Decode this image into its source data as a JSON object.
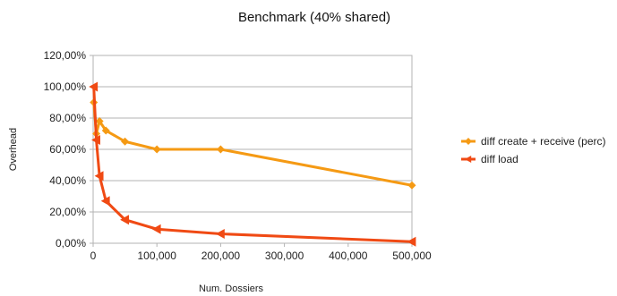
{
  "chart_data": {
    "type": "line",
    "title": "Benchmark (40% shared)",
    "xlabel": "Num. Dossiers",
    "ylabel": "Overhead",
    "xlim": [
      0,
      500000
    ],
    "ylim": [
      0,
      1.2
    ],
    "x_ticks": [
      0,
      100000,
      200000,
      300000,
      400000,
      500000
    ],
    "x_tick_labels": [
      "0",
      "100,000",
      "200,000",
      "300,000",
      "400,000",
      "500,000"
    ],
    "y_ticks": [
      0,
      0.2,
      0.4,
      0.6,
      0.8,
      1.0,
      1.2
    ],
    "y_tick_labels": [
      "0,00%",
      "20,00%",
      "40,00%",
      "60,00%",
      "80,00%",
      "100,00%",
      "120,00%"
    ],
    "grid": "horizontal",
    "legend_position": "right",
    "series": [
      {
        "name": "diff create + receive (perc)",
        "color": "#f59a14",
        "marker": "diamond",
        "x": [
          1000,
          5000,
          10000,
          20000,
          50000,
          100000,
          200000,
          500000
        ],
        "y": [
          0.9,
          0.7,
          0.78,
          0.72,
          0.65,
          0.6,
          0.6,
          0.37
        ]
      },
      {
        "name": "diff load",
        "color": "#f04a14",
        "marker": "triangle-left",
        "x": [
          1000,
          5000,
          10000,
          20000,
          50000,
          100000,
          200000,
          500000
        ],
        "y": [
          1.0,
          0.66,
          0.43,
          0.27,
          0.15,
          0.09,
          0.06,
          0.01
        ]
      }
    ]
  }
}
